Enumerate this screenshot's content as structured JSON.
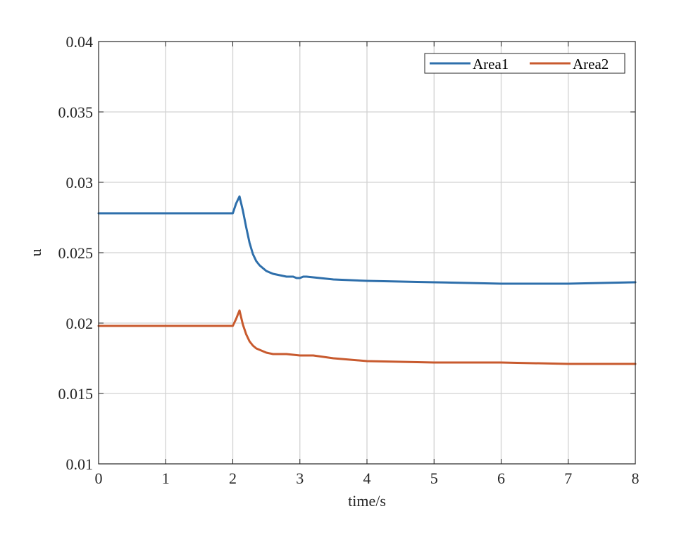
{
  "chart_data": {
    "type": "line",
    "title": "",
    "xlabel": "time/s",
    "ylabel": "u",
    "xlim": [
      0,
      8
    ],
    "ylim": [
      0.01,
      0.04
    ],
    "xticks": [
      0,
      1,
      2,
      3,
      4,
      5,
      6,
      7,
      8
    ],
    "xtick_labels": [
      "0",
      "1",
      "2",
      "3",
      "4",
      "5",
      "6",
      "7",
      "8"
    ],
    "yticks": [
      0.01,
      0.015,
      0.02,
      0.025,
      0.03,
      0.035,
      0.04
    ],
    "ytick_labels": [
      "0.01",
      "0.015",
      "0.02",
      "0.025",
      "0.03",
      "0.035",
      "0.04"
    ],
    "grid": true,
    "legend_position": "top-right",
    "series": [
      {
        "name": "Area1",
        "color": "#2e6fab",
        "x": [
          0,
          1.0,
          2.0,
          2.05,
          2.1,
          2.15,
          2.2,
          2.25,
          2.3,
          2.35,
          2.4,
          2.5,
          2.6,
          2.7,
          2.8,
          2.9,
          2.95,
          3.0,
          3.05,
          3.1,
          3.5,
          4.0,
          5.0,
          6.0,
          6.3,
          7.0,
          8.0
        ],
        "values": [
          0.0278,
          0.0278,
          0.0278,
          0.0285,
          0.029,
          0.028,
          0.0268,
          0.0257,
          0.0249,
          0.0244,
          0.0241,
          0.0237,
          0.0235,
          0.0234,
          0.0233,
          0.0233,
          0.0232,
          0.0232,
          0.0233,
          0.0233,
          0.0231,
          0.023,
          0.0229,
          0.0228,
          0.0228,
          0.0228,
          0.0229
        ]
      },
      {
        "name": "Area2",
        "color": "#c85a2e",
        "x": [
          0,
          1.0,
          2.0,
          2.05,
          2.1,
          2.15,
          2.2,
          2.25,
          2.3,
          2.35,
          2.4,
          2.5,
          2.6,
          2.8,
          3.0,
          3.2,
          3.5,
          4.0,
          5.0,
          6.0,
          7.0,
          8.0
        ],
        "values": [
          0.0198,
          0.0198,
          0.0198,
          0.0203,
          0.0209,
          0.0199,
          0.0192,
          0.0187,
          0.0184,
          0.0182,
          0.0181,
          0.0179,
          0.0178,
          0.0178,
          0.0177,
          0.0177,
          0.0175,
          0.0173,
          0.0172,
          0.0172,
          0.0171,
          0.0171
        ]
      }
    ]
  }
}
